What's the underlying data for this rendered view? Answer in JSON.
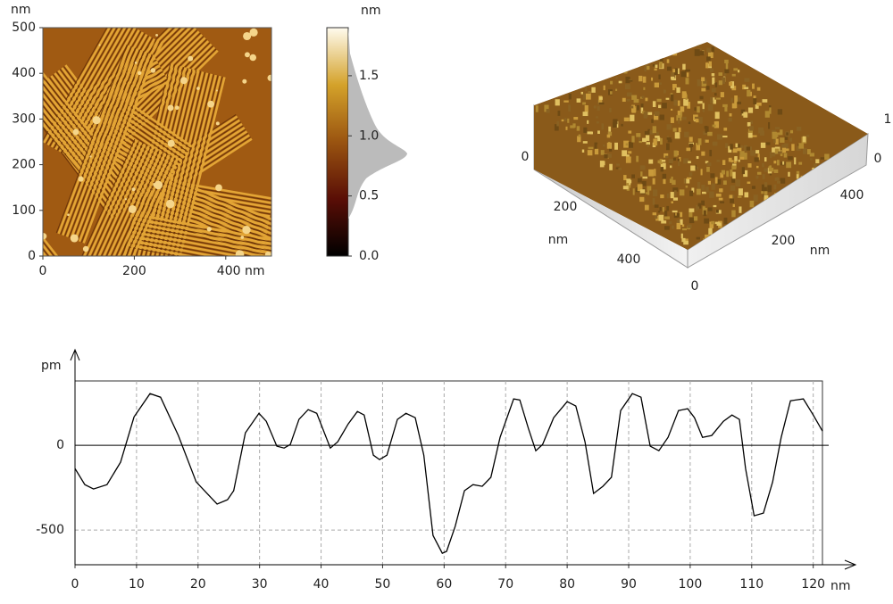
{
  "chart_data": [
    {
      "type": "image",
      "xlabel": "nm",
      "ylabel": "nm",
      "xlim": [
        0,
        500
      ],
      "ylim": [
        0,
        500
      ],
      "xticks": [
        0,
        200,
        {
          "value": 400,
          "label": "400 nm"
        }
      ],
      "yticks": [
        0,
        100,
        200,
        300,
        400,
        500
      ]
    },
    {
      "type": "colorbar",
      "label": "nm",
      "ylim": [
        0,
        1.9
      ],
      "yticks": [
        {
          "value": 0,
          "label": "0.0"
        },
        {
          "value": 0.5,
          "label": "0.5"
        },
        {
          "value": 1,
          "label": "1.0"
        },
        {
          "value": 1.5,
          "label": "1.5"
        }
      ]
    },
    {
      "type": "surface3d",
      "xlabel": "nm",
      "ylabel": "nm",
      "xticks": [
        0,
        200,
        400
      ],
      "yticks": [
        0,
        200,
        400
      ],
      "zticks": [
        0,
        1
      ]
    },
    {
      "type": "line",
      "xlabel": "nm",
      "ylabel": "pm",
      "color": "#000000",
      "xlim": [
        0,
        121.5
      ],
      "ylim": [
        -705,
        380
      ],
      "xticks": [
        0,
        10,
        20,
        30,
        40,
        50,
        60,
        70,
        80,
        90,
        100,
        110,
        120
      ],
      "yticks": [
        -500,
        0
      ],
      "x": [
        0,
        1.6,
        3,
        5.2,
        7.4,
        9.6,
        12.2,
        13.9,
        16.8,
        19.7,
        23.1,
        24.8,
        25.8,
        27.7,
        29.9,
        31.1,
        32.8,
        34,
        35,
        36.4,
        37.9,
        39.3,
        41.5,
        42.7,
        44.4,
        45.9,
        47,
        48.5,
        49.5,
        50.7,
        52.4,
        53.8,
        55.3,
        56.7,
        58.2,
        59.7,
        60.4,
        61.8,
        63.3,
        64.7,
        66.2,
        67.6,
        69.1,
        71.3,
        72.3,
        73.7,
        74.9,
        76,
        77.8,
        80,
        81.4,
        82.9,
        84.3,
        85.8,
        87.2,
        88.7,
        90.6,
        92,
        93.5,
        94.9,
        96.4,
        98.1,
        99.6,
        100.7,
        102,
        103.5,
        105.4,
        106.8,
        108,
        109,
        110.4,
        111.9,
        113.4,
        114.8,
        116.3,
        118.4,
        120,
        121.5
      ],
      "values": [
        -137,
        -232,
        -258,
        -232,
        -100,
        168,
        305,
        284,
        58,
        -216,
        -347,
        -321,
        -268,
        74,
        189,
        142,
        -5,
        -16,
        5,
        153,
        211,
        189,
        -16,
        21,
        126,
        200,
        179,
        -58,
        -84,
        -58,
        153,
        189,
        163,
        -58,
        -532,
        -637,
        -626,
        -479,
        -268,
        -232,
        -242,
        -189,
        47,
        274,
        268,
        100,
        -32,
        5,
        163,
        258,
        232,
        21,
        -284,
        -242,
        -189,
        205,
        305,
        284,
        -5,
        -32,
        47,
        205,
        216,
        163,
        47,
        58,
        142,
        179,
        153,
        -137,
        -416,
        -400,
        -216,
        47,
        263,
        274,
        179,
        84
      ]
    }
  ]
}
